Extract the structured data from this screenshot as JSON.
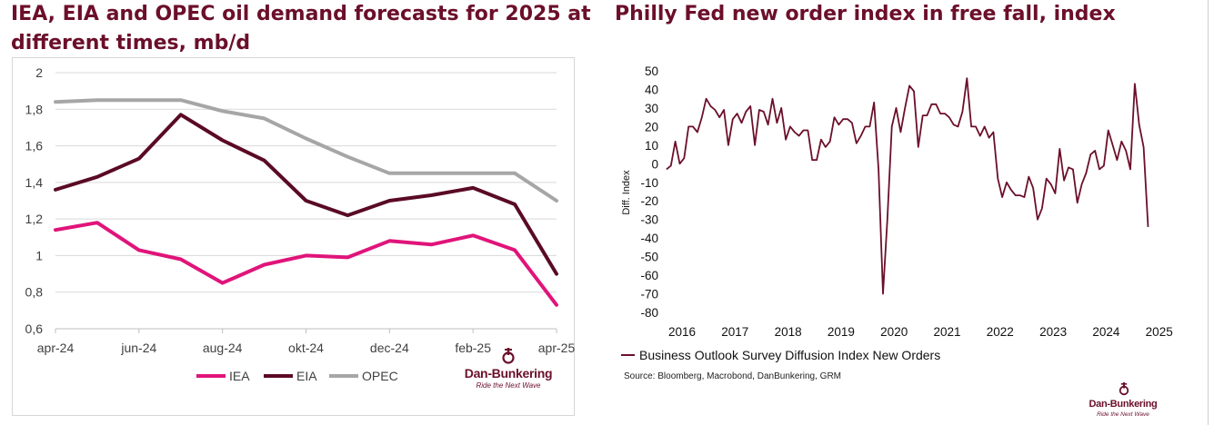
{
  "left_panel": {
    "title": "IEA, EIA and OPEC oil demand forecasts for 2025 at different times, mb/d"
  },
  "right_panel": {
    "title": "Philly Fed new order index in free fall, index",
    "source": "Source: Bloomberg, Macrobond, DanBunkering, GRM"
  },
  "logo": {
    "name": "Dan-Bunkering",
    "tagline": "Ride the Next Wave"
  },
  "colors": {
    "brand": "#6b0f2a",
    "iea": "#e0147a",
    "eia": "#5a0a26",
    "opec": "#a6a6a6",
    "philly": "#6b0f2a"
  },
  "chart_data": [
    {
      "type": "line",
      "title": "IEA, EIA and OPEC oil demand forecasts for 2025 at different times, mb/d",
      "xlabel": "",
      "ylabel": "",
      "x_tick_labels": [
        "apr-24",
        "jun-24",
        "aug-24",
        "okt-24",
        "dec-24",
        "feb-25",
        "apr-25"
      ],
      "x": [
        "apr-24",
        "mai-24",
        "jun-24",
        "jul-24",
        "aug-24",
        "sep-24",
        "okt-24",
        "nov-24",
        "dec-24",
        "jan-25",
        "feb-25",
        "mar-25",
        "apr-25"
      ],
      "ylim": [
        0.6,
        2.0
      ],
      "y_tick_labels": [
        "0,6",
        "0,8",
        "1",
        "1,2",
        "1,4",
        "1,6",
        "1,8",
        "2"
      ],
      "grid": true,
      "legend": "bottom",
      "series": [
        {
          "name": "IEA",
          "values": [
            1.14,
            1.18,
            1.03,
            0.98,
            0.85,
            0.95,
            1.0,
            0.99,
            1.08,
            1.06,
            1.11,
            1.03,
            0.73
          ]
        },
        {
          "name": "EIA",
          "values": [
            1.36,
            1.43,
            1.53,
            1.77,
            1.63,
            1.52,
            1.3,
            1.22,
            1.3,
            1.33,
            1.37,
            1.28,
            0.9
          ]
        },
        {
          "name": "OPEC",
          "values": [
            1.84,
            1.85,
            1.85,
            1.85,
            1.79,
            1.75,
            1.64,
            1.54,
            1.45,
            1.45,
            1.45,
            1.45,
            1.3
          ]
        }
      ]
    },
    {
      "type": "line",
      "title": "Philly Fed new order index in free fall, index",
      "xlabel": "",
      "ylabel": "Diff. Index",
      "x_tick_labels": [
        "2016",
        "2017",
        "2018",
        "2019",
        "2020",
        "2021",
        "2022",
        "2023",
        "2024",
        "2025"
      ],
      "x_start": "2015-09",
      "x_end": "2025-04",
      "ylim": [
        -80,
        50
      ],
      "y_tick_labels": [
        "-80",
        "-70",
        "-60",
        "-50",
        "-40",
        "-30",
        "-20",
        "-10",
        "0",
        "10",
        "20",
        "30",
        "40",
        "50"
      ],
      "grid": false,
      "legend": "bottom-left",
      "series": [
        {
          "name": "Business Outlook Survey Diffusion Index New Orders",
          "values": [
            -3,
            -1,
            12,
            0,
            3,
            20,
            20,
            17,
            25,
            35,
            31,
            29,
            25,
            29,
            10,
            24,
            27,
            22,
            28,
            31,
            10,
            29,
            28,
            21,
            35,
            22,
            30,
            13,
            20,
            17,
            15,
            18,
            18,
            2,
            2,
            13,
            9,
            12,
            25,
            21,
            24,
            24,
            22,
            11,
            15,
            20,
            20,
            33,
            -3,
            -70,
            -30,
            20,
            30,
            17,
            30,
            42,
            39,
            9,
            26,
            26,
            32,
            32,
            27,
            27,
            25,
            21,
            20,
            28,
            46,
            20,
            20,
            15,
            20,
            14,
            17,
            -8,
            -18,
            -10,
            -14,
            -17,
            -17,
            -18,
            -7,
            -13,
            -30,
            -24,
            -8,
            -11,
            -16,
            8,
            -9,
            -2,
            -3,
            -21,
            -11,
            -5,
            5,
            7,
            -3,
            -1,
            18,
            10,
            2,
            12,
            7,
            -3,
            43,
            21,
            9,
            -34
          ]
        }
      ]
    }
  ]
}
